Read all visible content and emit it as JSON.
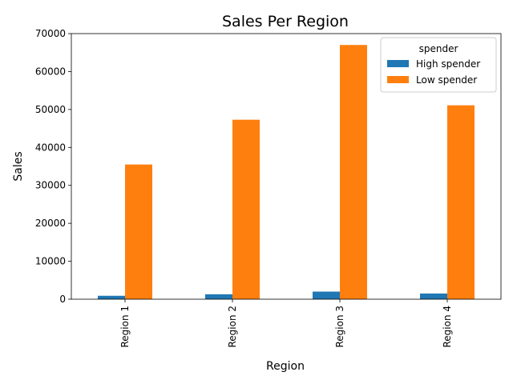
{
  "chart_data": {
    "type": "bar",
    "title": "Sales Per Region",
    "xlabel": "Region",
    "ylabel": "Sales",
    "categories": [
      "Region 1",
      "Region 2",
      "Region 3",
      "Region 4"
    ],
    "series": [
      {
        "name": "High spender",
        "values": [
          900,
          1300,
          2000,
          1500
        ],
        "color": "#1f77b4"
      },
      {
        "name": "Low spender",
        "values": [
          35500,
          47300,
          67000,
          51100
        ],
        "color": "#ff7f0e"
      }
    ],
    "ylim": [
      0,
      70000
    ],
    "yticks": [
      0,
      10000,
      20000,
      30000,
      40000,
      50000,
      60000,
      70000
    ],
    "grid": false,
    "legend": {
      "title": "spender",
      "position": "top-right"
    }
  }
}
